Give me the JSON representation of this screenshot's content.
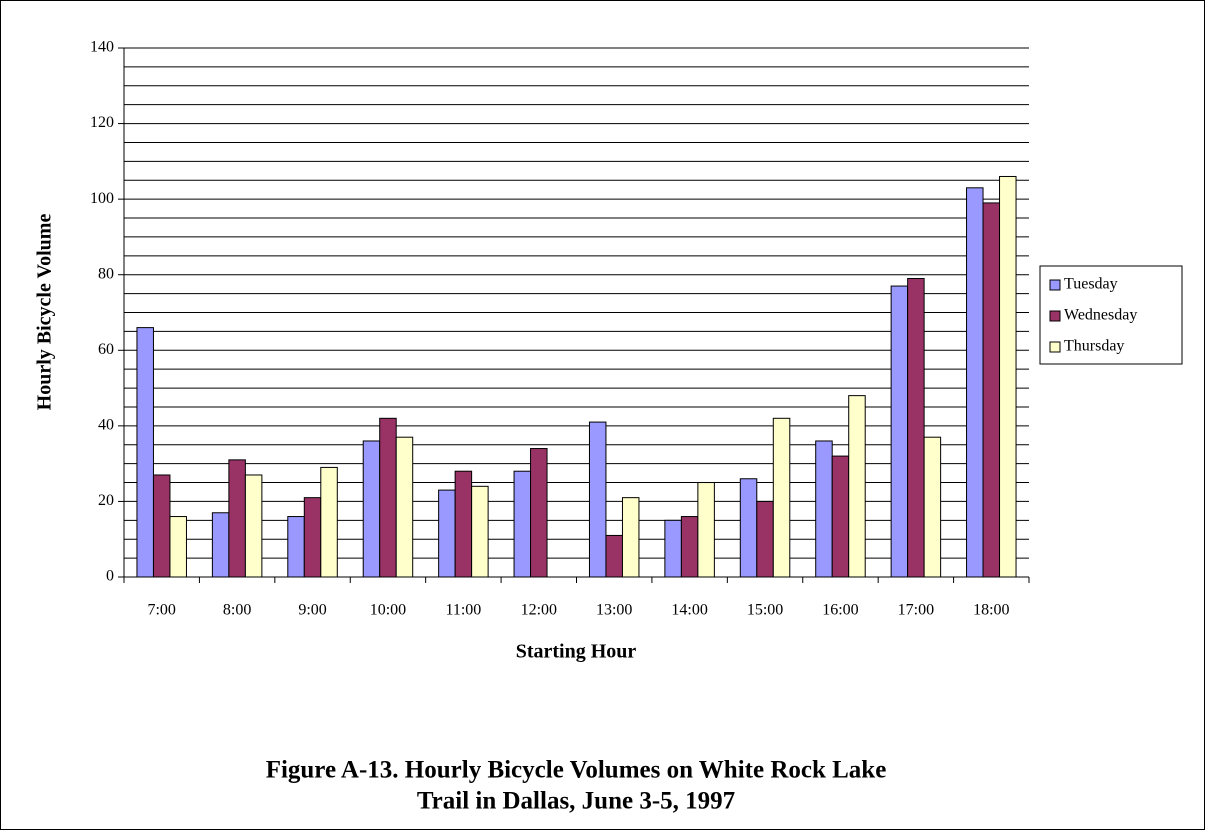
{
  "chart_data": {
    "type": "bar",
    "y_label": "Hourly Bicycle Volume",
    "x_label": "Starting Hour",
    "caption": [
      "Figure A-13.  Hourly Bicycle Volumes on White Rock Lake",
      "Trail in Dallas, June 3-5, 1997"
    ],
    "categories": [
      "7:00",
      "8:00",
      "9:00",
      "10:00",
      "11:00",
      "12:00",
      "13:00",
      "14:00",
      "15:00",
      "16:00",
      "17:00",
      "18:00"
    ],
    "series": [
      {
        "name": "Tuesday",
        "color": "#9999ff",
        "values": [
          66,
          17,
          16,
          36,
          23,
          28,
          41,
          15,
          26,
          36,
          77,
          103
        ]
      },
      {
        "name": "Wednesday",
        "color": "#993366",
        "values": [
          27,
          31,
          21,
          42,
          28,
          34,
          11,
          16,
          20,
          32,
          79,
          99
        ]
      },
      {
        "name": "Thursday",
        "color": "#ffffcc",
        "values": [
          16,
          27,
          29,
          37,
          24,
          null,
          21,
          25,
          42,
          48,
          37,
          106
        ]
      }
    ],
    "ylim": [
      0,
      140
    ],
    "yticks": [
      0,
      20,
      40,
      60,
      80,
      100,
      120,
      140
    ],
    "minor_yticks": [
      5,
      10,
      15,
      25,
      30,
      35,
      45,
      50,
      55,
      65,
      70,
      75,
      85,
      90,
      95,
      105,
      110,
      115,
      125,
      130,
      135
    ],
    "grid": true,
    "legend": "right"
  }
}
